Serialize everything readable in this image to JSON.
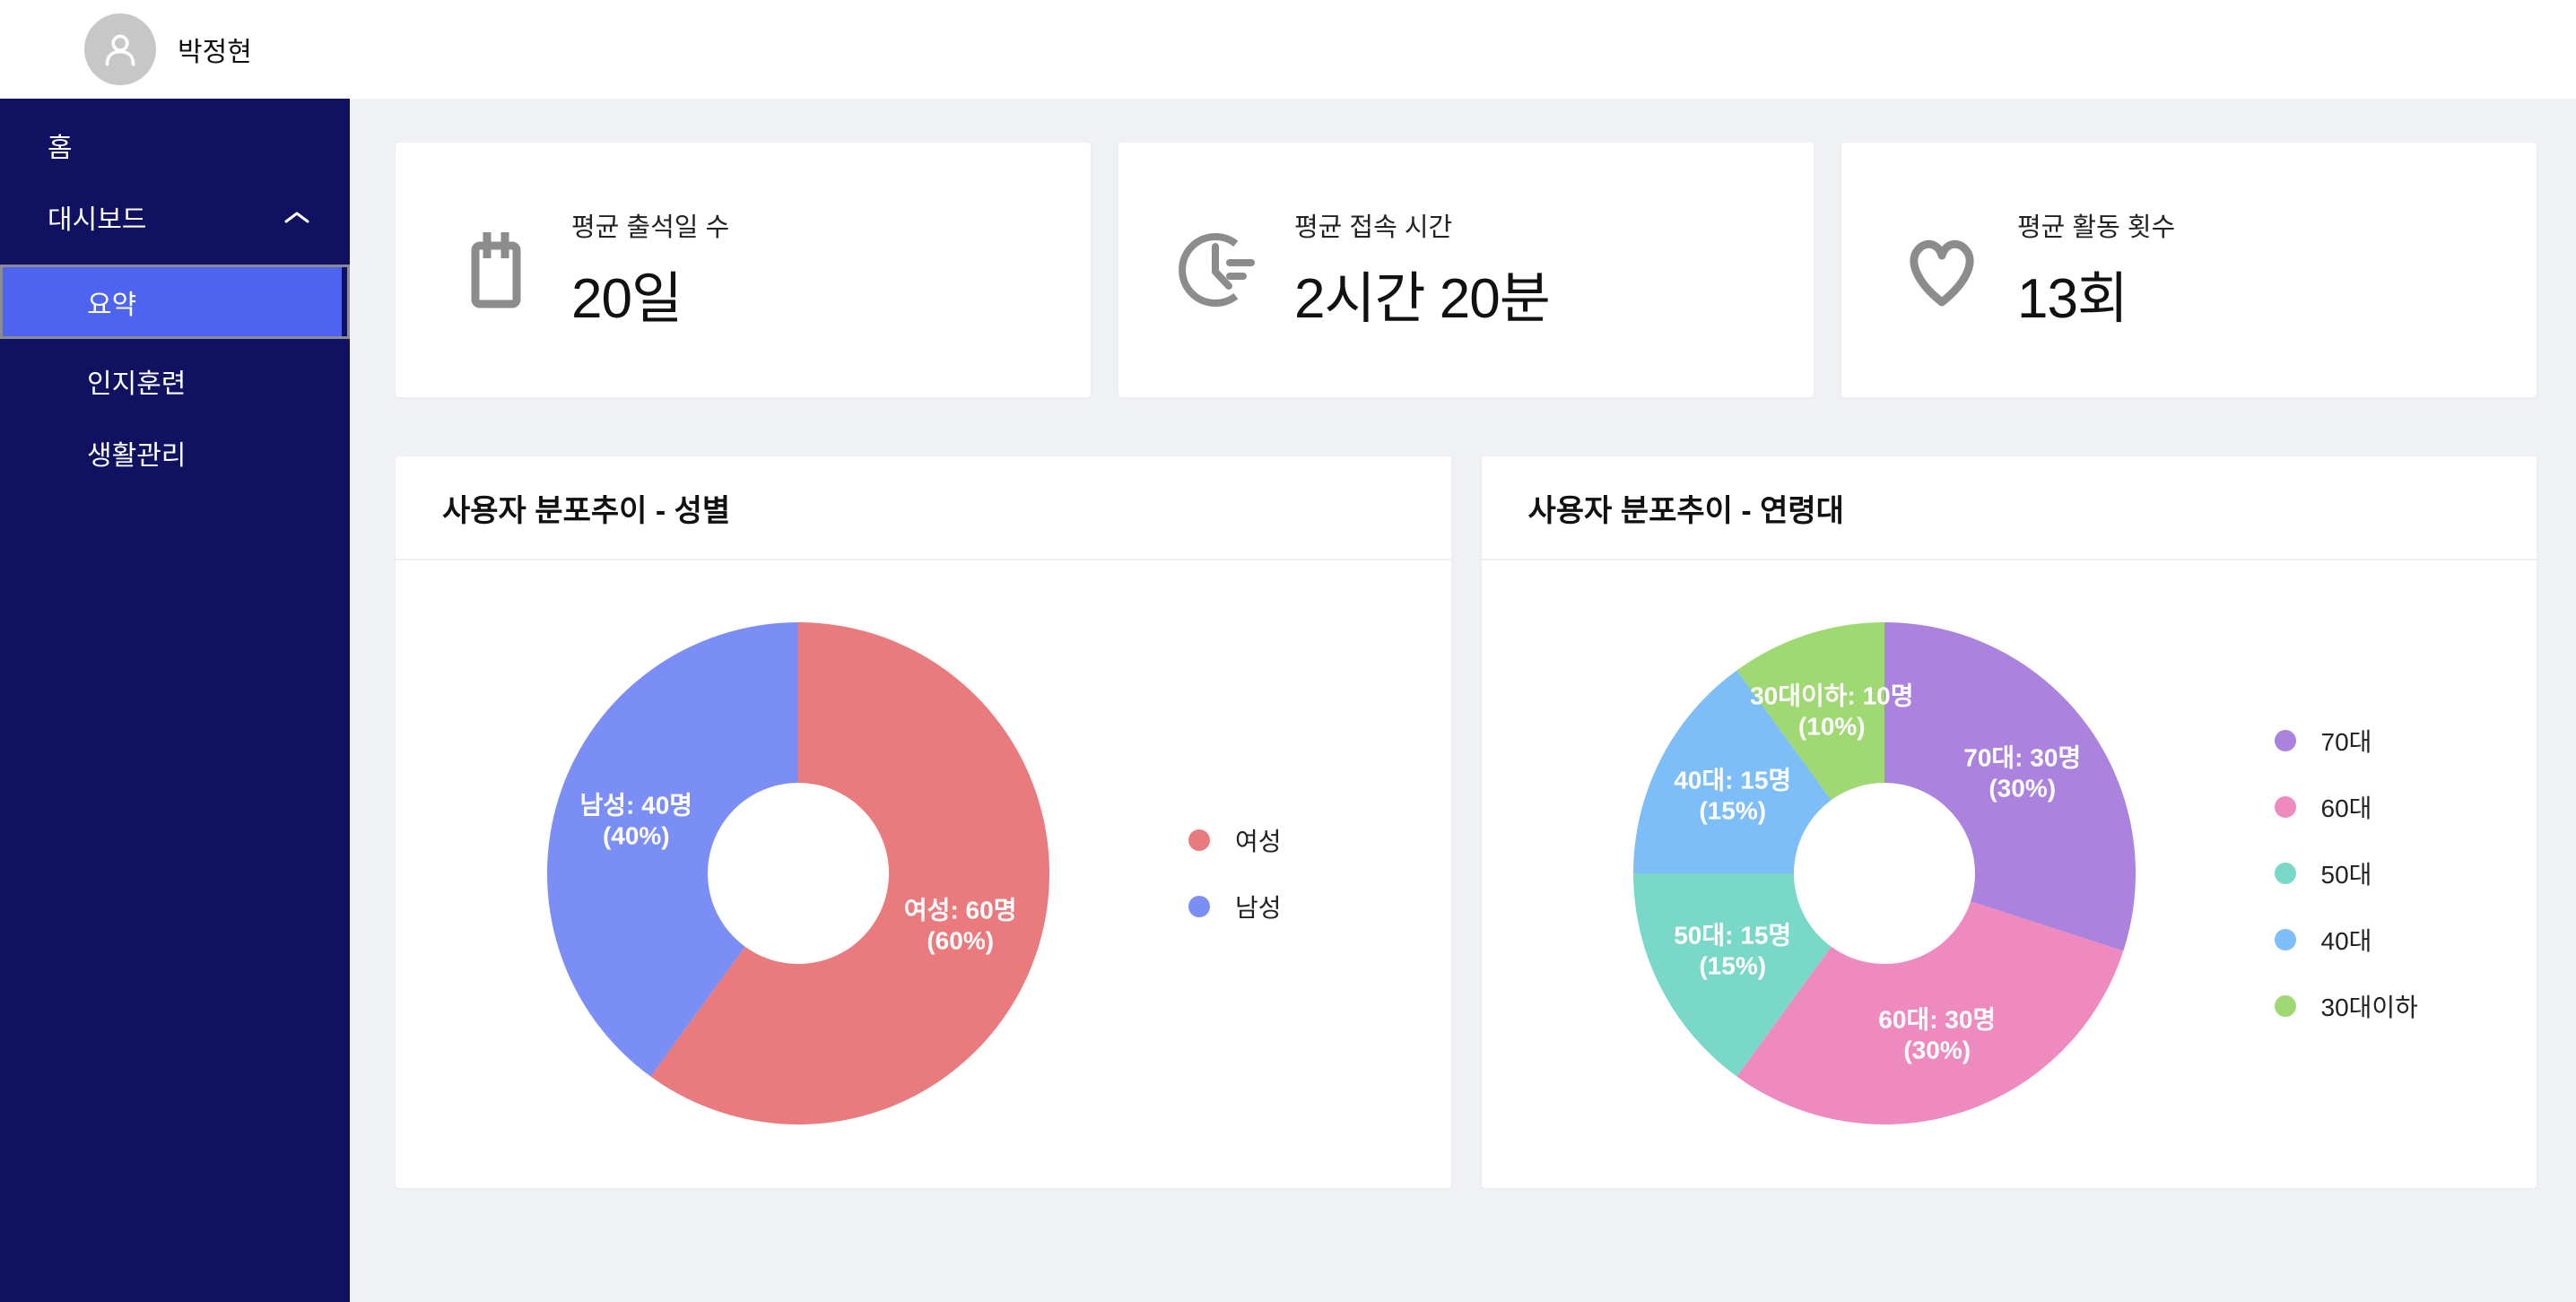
{
  "header": {
    "user_name": "박정현"
  },
  "sidebar": {
    "items": [
      {
        "id": "home",
        "label": "홈"
      },
      {
        "id": "dashboard",
        "label": "대시보드",
        "expanded": true,
        "children": [
          {
            "id": "summary",
            "label": "요약",
            "selected": true
          },
          {
            "id": "cognitive",
            "label": "인지훈련",
            "selected": false
          },
          {
            "id": "life",
            "label": "생활관리",
            "selected": false
          }
        ]
      }
    ]
  },
  "theme": {
    "page_bg": "#f0f1f5",
    "sidebar_bg": "#111161",
    "selected_item_bg": "#4e64f1",
    "selected_item_border": "#8b8b94",
    "card_bg": "#ffffff",
    "icon_gray": "#8c8c8c"
  },
  "stats": [
    {
      "icon": "calendar-icon",
      "label": "평균 출석일 수",
      "value": "20일"
    },
    {
      "icon": "clock-icon",
      "label": "평균 접속 시간",
      "value": "2시간 20분"
    },
    {
      "icon": "heart-icon",
      "label": "평균 활동 횟수",
      "value": "13회"
    }
  ],
  "chart_data": [
    {
      "type": "pie",
      "title": "사용자 분포추이 - 성별",
      "unit": "명",
      "cutout_ratio": 0.36,
      "legend_position": "right",
      "start_angle_deg": 0,
      "direction": "clockwise",
      "series": [
        {
          "label": "여성",
          "value": 60,
          "pct": 60,
          "color": "#e97a7e",
          "data_label": [
            "여성: 60명",
            "(60%)"
          ]
        },
        {
          "label": "남성",
          "value": 40,
          "pct": 40,
          "color": "#7b8ef5",
          "data_label": [
            "남성: 40명",
            "(40%)"
          ]
        }
      ]
    },
    {
      "type": "pie",
      "title": "사용자 분포추이 - 연령대",
      "unit": "명",
      "cutout_ratio": 0.36,
      "legend_position": "right",
      "start_angle_deg": 0,
      "direction": "clockwise",
      "series": [
        {
          "label": "70대",
          "value": 30,
          "pct": 30,
          "color": "#ab82de",
          "data_label": [
            "70대: 30명",
            "(30%)"
          ]
        },
        {
          "label": "60대",
          "value": 30,
          "pct": 30,
          "color": "#ee8abf",
          "data_label": [
            "60대: 30명",
            "(30%)"
          ]
        },
        {
          "label": "50대",
          "value": 15,
          "pct": 15,
          "color": "#7ad8c8",
          "data_label": [
            "50대: 15명",
            "(15%)"
          ]
        },
        {
          "label": "40대",
          "value": 15,
          "pct": 15,
          "color": "#7dbdf8",
          "data_label": [
            "40대: 15명",
            "(15%)"
          ]
        },
        {
          "label": "30대이하",
          "value": 10,
          "pct": 10,
          "color": "#a0d873",
          "data_label": [
            "30대이하: 10명",
            "(10%)"
          ]
        }
      ]
    }
  ]
}
